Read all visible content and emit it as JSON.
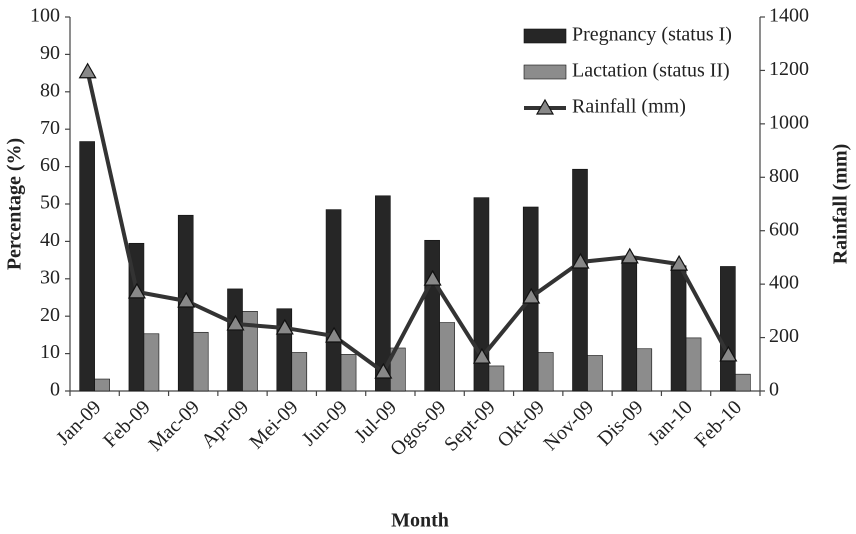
{
  "chart_data": {
    "type": "bar",
    "x_label": "Month",
    "y_label": "Percentage (%)",
    "y2_label": "Rainfall (mm)",
    "categories": [
      "Jan-09",
      "Feb-09",
      "Mac-09",
      "Apr-09",
      "Mei-09",
      "Jun-09",
      "Jul-09",
      "Ogos-09",
      "Sept-09",
      "Okt-09",
      "Nov-09",
      "Dis-09",
      "Jan-10",
      "Feb-10"
    ],
    "series": [
      {
        "name": "Pregnancy (status I)",
        "type": "bar",
        "color": "#262626",
        "values": [
          66.7,
          39.5,
          47,
          27.3,
          22,
          48.5,
          52.2,
          40.3,
          51.7,
          49.2,
          59.3,
          35.8,
          33.5,
          33.3
        ]
      },
      {
        "name": "Lactation (status II)",
        "type": "bar",
        "color": "#8c8c8c",
        "values": [
          3.2,
          15.3,
          15.7,
          21.3,
          10.3,
          9.8,
          11.5,
          18.3,
          6.7,
          10.3,
          9.5,
          11.3,
          14.2,
          4.5
        ]
      },
      {
        "name": "Rainfall (mm)",
        "type": "line",
        "axis": "y2",
        "color": "#333333",
        "marker_color": "#888888",
        "values": [
          1195,
          371,
          337,
          251,
          236,
          206,
          71,
          419,
          127,
          352,
          483,
          502,
          475,
          135
        ]
      }
    ],
    "ylim": [
      0,
      100
    ],
    "yticks": [
      0,
      10,
      20,
      30,
      40,
      50,
      60,
      70,
      80,
      90,
      100
    ],
    "y2lim": [
      0,
      1400
    ],
    "y2ticks": [
      0,
      200,
      400,
      600,
      800,
      1000,
      1200,
      1400
    ],
    "grid": false,
    "legend": "upper right"
  }
}
